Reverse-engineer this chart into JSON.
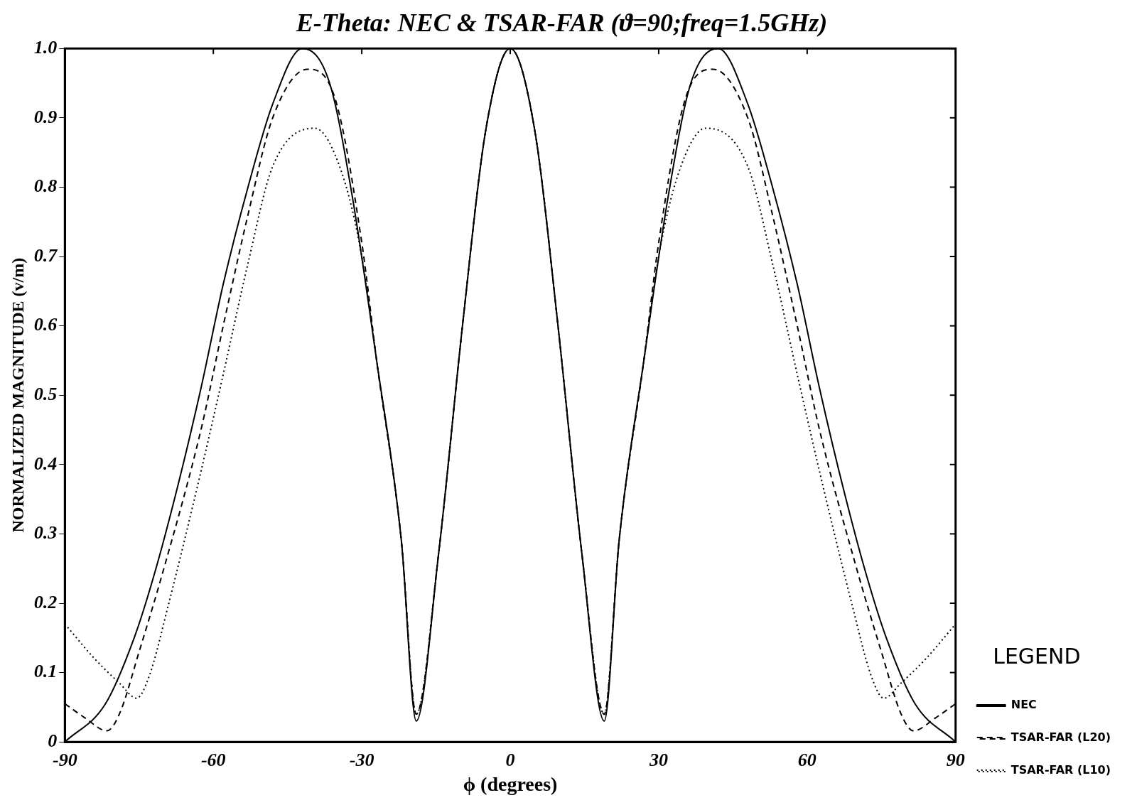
{
  "chart_data": {
    "type": "line",
    "title": "E-Theta: NEC & TSAR-FAR (ϑ=90;freq=1.5GHz)",
    "xlabel": "ϕ (degrees)",
    "ylabel": "NORMALIZED MAGNITUDE (v/m)",
    "legend_title": "LEGEND",
    "legend": "bottom right",
    "grid": false,
    "marker": "none",
    "xlim": [
      -90,
      90
    ],
    "xticks": [
      -90,
      -60,
      -30,
      0,
      30,
      60,
      90
    ],
    "ylim": [
      0,
      1
    ],
    "yticks": [
      0,
      0.1,
      0.2,
      0.3,
      0.4,
      0.5,
      0.6,
      0.7,
      0.8,
      0.9,
      {
        "value": 1,
        "label": "1.0"
      }
    ],
    "series": [
      {
        "name": "NEC",
        "color": "#000000",
        "line_style": "solid",
        "x": [
          -90,
          -81.8,
          -76,
          -72,
          -67.5,
          -62.5,
          -58,
          -53,
          -48,
          -42,
          -36.5,
          -32,
          -27,
          -22,
          -19,
          -14.5,
          -9.5,
          -5,
          0,
          5,
          9.5,
          14.5,
          19,
          22,
          27,
          32,
          36.5,
          42,
          48,
          53,
          58,
          62.5,
          67.5,
          72,
          76,
          81.8,
          90
        ],
        "values": [
          0,
          0.055,
          0.15,
          0.24,
          0.36,
          0.51,
          0.66,
          0.8,
          0.92,
          1,
          0.95,
          0.79,
          0.55,
          0.29,
          0.03,
          0.27,
          0.61,
          0.88,
          1,
          0.88,
          0.61,
          0.27,
          0.03,
          0.29,
          0.55,
          0.79,
          0.95,
          1,
          0.92,
          0.8,
          0.66,
          0.51,
          0.36,
          0.24,
          0.15,
          0.055,
          0
        ]
      },
      {
        "name": "TSAR-FAR (L20)",
        "color": "#000000",
        "line_style": "dashed",
        "x": [
          -90,
          -86,
          -81.5,
          -79,
          -75,
          -70,
          -62.5,
          -58,
          -53,
          -48,
          -41,
          -35.5,
          -30,
          -27,
          -22,
          -19,
          -14.5,
          -9.5,
          -5,
          0,
          5,
          9.5,
          14.5,
          19,
          22,
          27,
          30,
          35.5,
          41,
          48,
          53,
          58,
          62.5,
          70,
          75,
          79,
          81.5,
          86,
          90
        ],
        "values": [
          0.055,
          0.035,
          0.016,
          0.04,
          0.13,
          0.25,
          0.45,
          0.6,
          0.76,
          0.9,
          0.97,
          0.93,
          0.72,
          0.55,
          0.29,
          0.04,
          0.27,
          0.61,
          0.88,
          1,
          0.88,
          0.61,
          0.27,
          0.04,
          0.29,
          0.55,
          0.72,
          0.93,
          0.97,
          0.9,
          0.76,
          0.6,
          0.45,
          0.25,
          0.13,
          0.04,
          0.016,
          0.035,
          0.055
        ]
      },
      {
        "name": "TSAR-FAR (L10)",
        "color": "#000000",
        "line_style": "dotted",
        "x": [
          -90,
          -84,
          -79,
          -75.5,
          -73,
          -69,
          -62.5,
          -58,
          -53,
          -48,
          -39.5,
          -34,
          -30,
          -27,
          -22,
          -19,
          -14.5,
          -9.5,
          -5,
          0,
          5,
          9.5,
          14.5,
          19,
          22,
          27,
          30,
          34,
          39.5,
          48,
          53,
          58,
          62.5,
          69,
          73,
          75.5,
          79,
          84,
          90
        ],
        "values": [
          0.17,
          0.12,
          0.085,
          0.063,
          0.094,
          0.2,
          0.39,
          0.53,
          0.69,
          0.83,
          0.885,
          0.82,
          0.7,
          0.55,
          0.29,
          0.04,
          0.27,
          0.61,
          0.88,
          1,
          0.88,
          0.61,
          0.27,
          0.04,
          0.29,
          0.55,
          0.7,
          0.82,
          0.885,
          0.83,
          0.69,
          0.53,
          0.39,
          0.2,
          0.094,
          0.063,
          0.085,
          0.12,
          0.17
        ]
      }
    ]
  }
}
